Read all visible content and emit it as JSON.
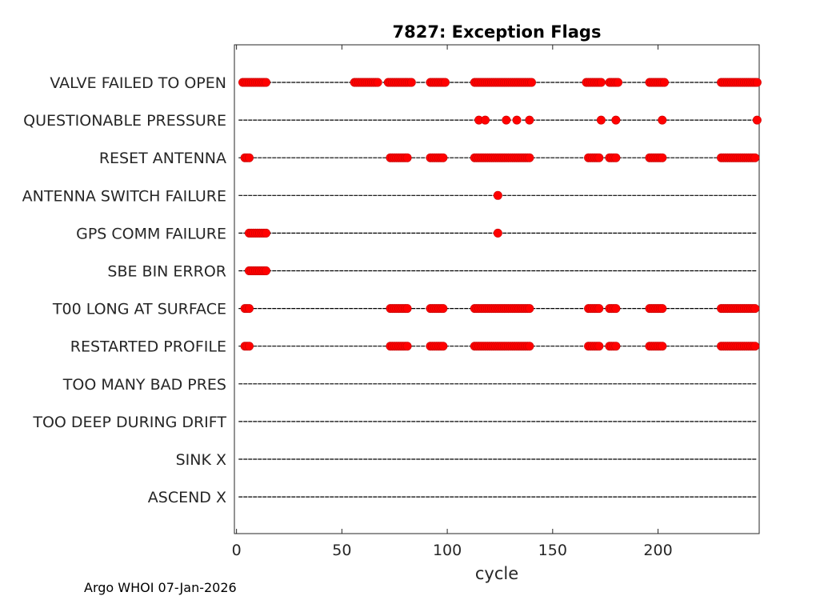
{
  "footer": "Argo WHOI 07-Jan-2026",
  "chart_data": {
    "type": "scatter",
    "title": "7827: Exception Flags",
    "xlabel": "cycle",
    "ylabel": "",
    "xlim": [
      -1,
      248
    ],
    "xticks": [
      0,
      50,
      100,
      150,
      200
    ],
    "cycle_range": [
      1,
      247
    ],
    "grid": false,
    "marker_color": "#ff0000",
    "line_color": "#000000",
    "categories": [
      "VALVE FAILED TO OPEN",
      "QUESTIONABLE PRESSURE",
      "RESET ANTENNA",
      "ANTENNA SWITCH FAILURE",
      "GPS COMM FAILURE",
      "SBE BIN ERROR",
      "T00 LONG AT SURFACE",
      "RESTARTED PROFILE",
      "TOO MANY BAD PRES",
      "TOO DEEP DURING DRIFT",
      "SINK X",
      "ASCEND X"
    ],
    "series": [
      {
        "name": "VALVE FAILED TO OPEN",
        "x": [
          3,
          4,
          5,
          6,
          7,
          8,
          9,
          10,
          11,
          12,
          13,
          14,
          56,
          57,
          58,
          59,
          60,
          61,
          62,
          63,
          64,
          65,
          66,
          67,
          72,
          73,
          74,
          75,
          76,
          77,
          78,
          79,
          80,
          81,
          82,
          83,
          92,
          93,
          94,
          95,
          96,
          97,
          98,
          99,
          113,
          114,
          115,
          116,
          117,
          118,
          119,
          120,
          121,
          122,
          123,
          124,
          125,
          126,
          127,
          128,
          129,
          130,
          131,
          132,
          133,
          134,
          135,
          136,
          137,
          138,
          139,
          140,
          166,
          167,
          168,
          169,
          170,
          171,
          172,
          173,
          177,
          178,
          179,
          180,
          181,
          196,
          197,
          198,
          199,
          200,
          201,
          202,
          203,
          230,
          231,
          232,
          233,
          234,
          235,
          236,
          237,
          238,
          239,
          240,
          241,
          242,
          243,
          244,
          245,
          246,
          247
        ]
      },
      {
        "name": "QUESTIONABLE PRESSURE",
        "x": [
          115,
          118,
          128,
          133,
          139,
          173,
          180,
          202,
          247
        ]
      },
      {
        "name": "RESET ANTENNA",
        "x": [
          4,
          5,
          6,
          73,
          74,
          75,
          76,
          77,
          78,
          79,
          80,
          81,
          92,
          93,
          94,
          95,
          96,
          97,
          98,
          113,
          114,
          115,
          116,
          117,
          118,
          119,
          120,
          121,
          122,
          123,
          124,
          125,
          126,
          127,
          128,
          129,
          130,
          131,
          132,
          133,
          134,
          135,
          136,
          137,
          138,
          139,
          167,
          168,
          169,
          170,
          171,
          172,
          177,
          178,
          179,
          180,
          196,
          197,
          198,
          199,
          200,
          201,
          202,
          230,
          231,
          232,
          233,
          234,
          235,
          236,
          237,
          238,
          239,
          240,
          241,
          242,
          243,
          244,
          245,
          246
        ]
      },
      {
        "name": "ANTENNA SWITCH FAILURE",
        "x": [
          124
        ]
      },
      {
        "name": "GPS COMM FAILURE",
        "x": [
          6,
          7,
          8,
          9,
          10,
          11,
          12,
          13,
          14,
          124
        ]
      },
      {
        "name": "SBE BIN ERROR",
        "x": [
          6,
          7,
          8,
          9,
          10,
          11,
          12,
          13,
          14
        ]
      },
      {
        "name": "T00 LONG AT SURFACE",
        "x": [
          4,
          5,
          6,
          73,
          74,
          75,
          76,
          77,
          78,
          79,
          80,
          81,
          92,
          93,
          94,
          95,
          96,
          97,
          98,
          113,
          114,
          115,
          116,
          117,
          118,
          119,
          120,
          121,
          122,
          123,
          124,
          125,
          126,
          127,
          128,
          129,
          130,
          131,
          132,
          133,
          134,
          135,
          136,
          137,
          138,
          139,
          167,
          168,
          169,
          170,
          171,
          172,
          177,
          178,
          179,
          180,
          196,
          197,
          198,
          199,
          200,
          201,
          202,
          230,
          231,
          232,
          233,
          234,
          235,
          236,
          237,
          238,
          239,
          240,
          241,
          242,
          243,
          244,
          245,
          246
        ]
      },
      {
        "name": "RESTARTED PROFILE",
        "x": [
          4,
          5,
          6,
          73,
          74,
          75,
          76,
          77,
          78,
          79,
          80,
          81,
          92,
          93,
          94,
          95,
          96,
          97,
          98,
          113,
          114,
          115,
          116,
          117,
          118,
          119,
          120,
          121,
          122,
          123,
          124,
          125,
          126,
          127,
          128,
          129,
          130,
          131,
          132,
          133,
          134,
          135,
          136,
          137,
          138,
          139,
          167,
          168,
          169,
          170,
          171,
          172,
          177,
          178,
          179,
          180,
          196,
          197,
          198,
          199,
          200,
          201,
          202,
          230,
          231,
          232,
          233,
          234,
          235,
          236,
          237,
          238,
          239,
          240,
          241,
          242,
          243,
          244,
          245,
          246
        ]
      },
      {
        "name": "TOO MANY BAD PRES",
        "x": []
      },
      {
        "name": "TOO DEEP DURING DRIFT",
        "x": []
      },
      {
        "name": "SINK X",
        "x": []
      },
      {
        "name": "ASCEND X",
        "x": []
      }
    ]
  }
}
